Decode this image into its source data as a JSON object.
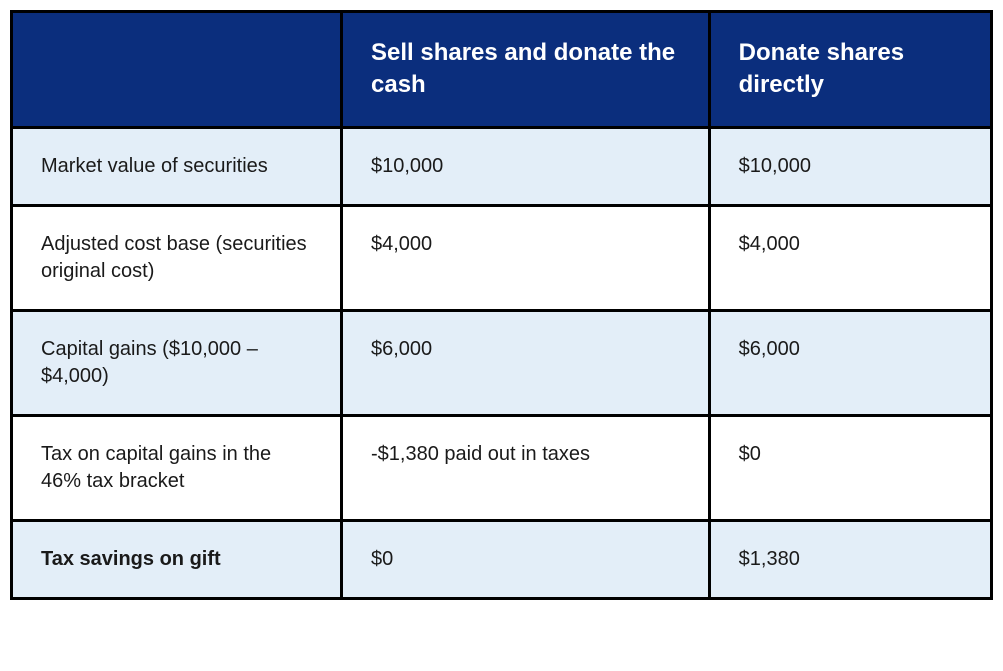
{
  "table": {
    "colors": {
      "header_bg": "#0b2e7d",
      "header_text": "#ffffff",
      "row_alt_bg": "#e3eef8",
      "row_plain_bg": "#ffffff",
      "border": "#000000",
      "text": "#1a1a1a"
    },
    "header": {
      "col1": "",
      "col2": "Sell shares and donate the cash",
      "col3": "Donate shares directly"
    },
    "rows": [
      {
        "label": "Market value of securities",
        "sell": "$10,000",
        "donate": "$10,000",
        "alt": true,
        "bold": false
      },
      {
        "label": "Adjusted cost base (securities original cost)",
        "sell": "$4,000",
        "donate": "$4,000",
        "alt": false,
        "bold": false
      },
      {
        "label": "Capital gains ($10,000 – $4,000)",
        "sell": "$6,000",
        "donate": "$6,000",
        "alt": true,
        "bold": false
      },
      {
        "label": "Tax on capital gains in the 46% tax bracket",
        "sell": "-$1,380 paid out in taxes",
        "donate": "$0",
        "alt": false,
        "bold": false
      },
      {
        "label": "Tax savings on gift",
        "sell": "$0",
        "donate": "$1,380",
        "alt": true,
        "bold": true
      }
    ]
  }
}
